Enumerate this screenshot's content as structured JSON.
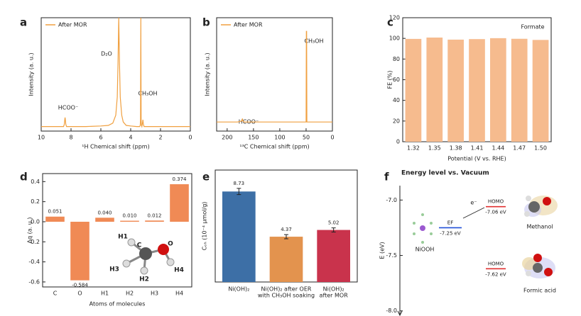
{
  "chart_data": [
    {
      "panel": "a",
      "type": "line",
      "xlabel": "¹H Chemical shift (ppm)",
      "ylabel": "Intensity (a. u.)",
      "xlim": [
        10,
        0
      ],
      "xticks": [
        10,
        8,
        6,
        4,
        2,
        0
      ],
      "ylim": [
        0,
        100
      ],
      "series": [
        {
          "name": "After MOR",
          "color": "#f0a040",
          "x": [
            10,
            9,
            8.5,
            8.45,
            8.42,
            8.4,
            8.38,
            8.35,
            8.3,
            7,
            6,
            5.5,
            5.2,
            5.0,
            4.9,
            4.85,
            4.8,
            4.75,
            4.7,
            4.6,
            4.5,
            4.3,
            4.0,
            3.6,
            3.4,
            3.36,
            3.34,
            3.32,
            3.3,
            3.28,
            3.25,
            3.2,
            3.18,
            3.15,
            3.1,
            3.0,
            2.5,
            1,
            0
          ],
          "values": [
            4,
            4,
            4,
            6,
            10,
            12,
            10,
            6,
            4,
            4,
            4.5,
            5,
            7,
            14,
            30,
            60,
            100,
            60,
            30,
            14,
            8,
            5,
            4.5,
            4,
            4,
            5,
            10,
            100,
            10,
            5,
            4,
            8,
            10,
            6,
            4,
            4,
            4,
            4,
            4
          ]
        }
      ],
      "annotations": [
        "HCOO⁻",
        "D₂O",
        "CH₃OH"
      ]
    },
    {
      "panel": "b",
      "type": "line",
      "xlabel": "¹³C Chemical shift (ppm)",
      "ylabel": "Intensity (a. u.)",
      "xlim": [
        220,
        0
      ],
      "xticks": [
        200,
        150,
        100,
        50,
        0
      ],
      "ylim": [
        0,
        100
      ],
      "series": [
        {
          "name": "After MOR",
          "color": "#f0a040",
          "x": [
            220,
            200,
            180,
            172,
            171,
            170,
            168,
            150,
            120,
            100,
            80,
            60,
            52,
            50,
            49.5,
            49,
            48.5,
            48,
            46,
            30,
            10,
            0
          ],
          "values": [
            8,
            8,
            8,
            9,
            11,
            9,
            8,
            8,
            8,
            8,
            8,
            8,
            8,
            8,
            88,
            88,
            8,
            8,
            8,
            8,
            8,
            8
          ]
        }
      ],
      "annotations": [
        "HCOO⁻",
        "CH₃OH"
      ]
    },
    {
      "panel": "c",
      "type": "bar",
      "xlabel": "Potential (V vs. RHE)",
      "ylabel": "FE (%)",
      "categories": [
        "1.32",
        "1.35",
        "1.38",
        "1.41",
        "1.44",
        "1.47",
        "1.50"
      ],
      "values": [
        99.5,
        100.8,
        98.8,
        99.3,
        100.2,
        99.6,
        98.5
      ],
      "color": "#f6bb8e",
      "ylim": [
        0,
        120
      ],
      "yticks": [
        0,
        20,
        40,
        60,
        80,
        100,
        120
      ],
      "annotations": [
        "Formate"
      ]
    },
    {
      "panel": "d",
      "type": "bar",
      "xlabel": "Atoms of molecules",
      "ylabel": "Δq (a. u.)",
      "categories": [
        "C",
        "O",
        "H1",
        "H2",
        "H3",
        "H4"
      ],
      "values": [
        0.051,
        -0.584,
        0.04,
        0.01,
        0.012,
        0.374
      ],
      "value_labels": [
        "0.051",
        "-0.584",
        "0.040",
        "0.010",
        "0.012",
        "0.374"
      ],
      "color": "#f08a55",
      "ylim": [
        -0.65,
        0.48
      ],
      "yticks": [
        -0.6,
        -0.4,
        -0.2,
        {
          "value": 0,
          "label": "0.0"
        },
        0.2,
        0.4
      ],
      "annotations": [
        "H1",
        "C",
        "O",
        "H3",
        "H2",
        "H4"
      ]
    },
    {
      "panel": "e",
      "type": "bar",
      "ylabel": "Cₒₕ (10⁻⁴ μmol/g)",
      "categories": [
        [
          "Ni(OH)₂"
        ],
        [
          "Ni(OH)₂ after OER",
          "with CH₃OH soaking"
        ],
        [
          "Ni(OH)₂",
          "after MOR"
        ]
      ],
      "values": [
        8.73,
        4.37,
        5.02
      ],
      "errors": [
        0.3,
        0.2,
        0.2
      ],
      "colors": [
        "#3d6fa6",
        "#e3934e",
        "#c9334c"
      ],
      "ylim": [
        0,
        10.8
      ]
    },
    {
      "panel": "f",
      "type": "energy",
      "title": "Energy level vs. Vacuum",
      "ylabel": "E (eV)",
      "ylim": [
        -8.04,
        -6.87
      ],
      "yticks": [
        {
          "value": -7,
          "label": "-7.0"
        },
        -7.5,
        {
          "value": -8,
          "label": "-8.0"
        }
      ],
      "levels": [
        {
          "label": "EF",
          "value": -7.25,
          "value_label": "-7.25 eV",
          "color": "#2050d8"
        },
        {
          "label": "HOMO",
          "value": -7.06,
          "value_label": "-7.06 eV",
          "molecule": "Methanol",
          "color": "#e03030"
        },
        {
          "label": "HOMO",
          "value": -7.62,
          "value_label": "-7.62 eV",
          "molecule": "Formic acid",
          "color": "#e03030"
        }
      ],
      "annotations": [
        "NiOOH",
        "e⁻"
      ]
    }
  ]
}
